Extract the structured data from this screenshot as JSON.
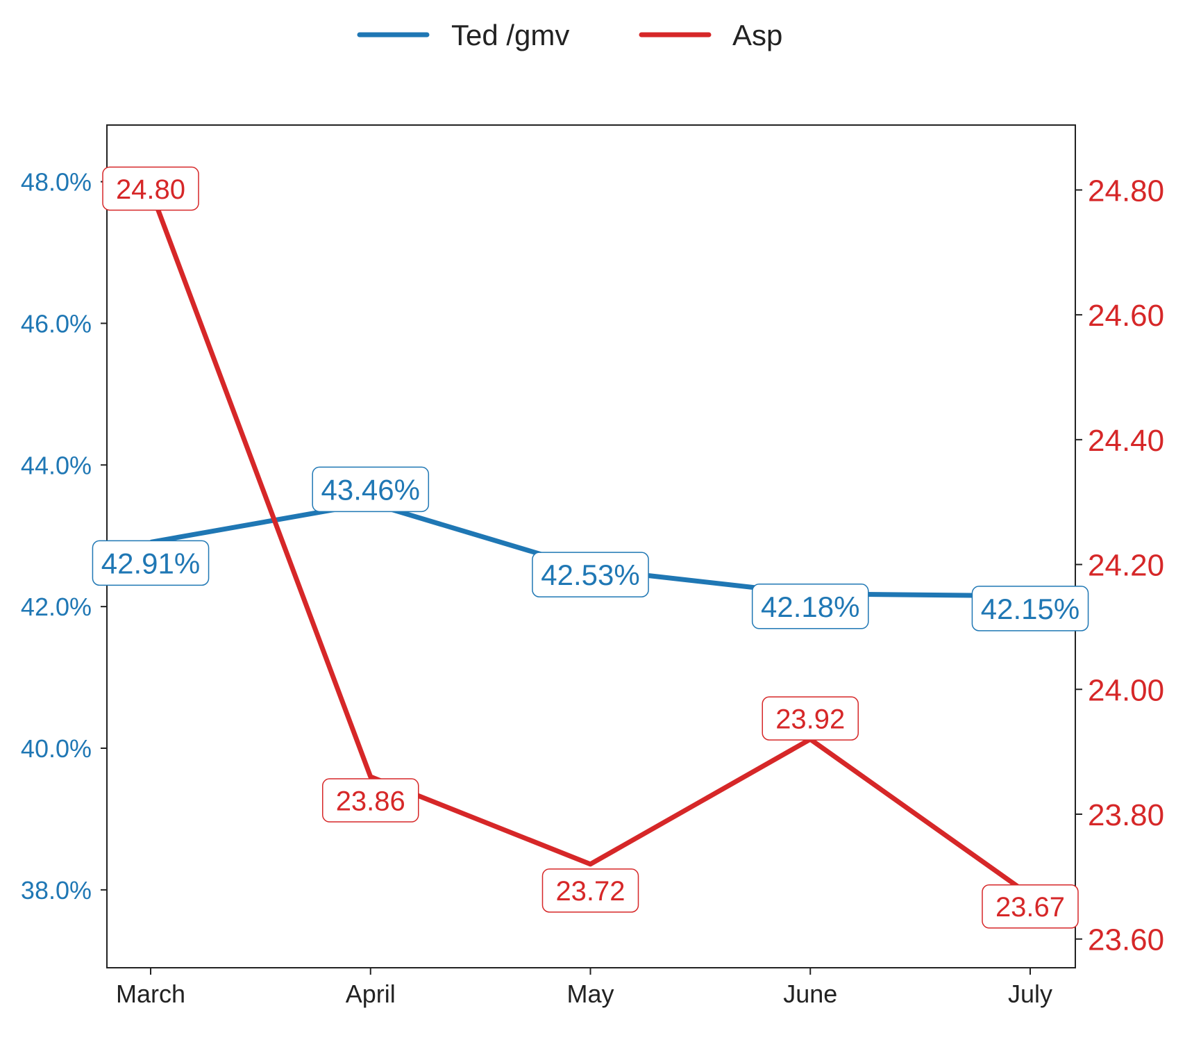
{
  "chart_data": {
    "type": "line",
    "categories": [
      "March",
      "April",
      "May",
      "June",
      "July"
    ],
    "legend": {
      "placement": "top-center"
    },
    "grid": false,
    "series": [
      {
        "name": "Ted /gmv",
        "axis": "left",
        "color": "#1f77b4",
        "values": [
          42.91,
          43.46,
          42.53,
          42.18,
          42.15
        ],
        "labels": [
          "42.91%",
          "43.46%",
          "42.53%",
          "42.18%",
          "42.15%"
        ]
      },
      {
        "name": "Asp",
        "axis": "right",
        "color": "#d62728",
        "values": [
          24.8,
          23.86,
          23.72,
          23.92,
          23.67
        ],
        "labels": [
          "24.80",
          "23.86",
          "23.72",
          "23.92",
          "23.67"
        ]
      }
    ],
    "y_left": {
      "ylim": [
        36.9,
        48.8
      ],
      "ticks": [
        38,
        40,
        42,
        44,
        46,
        48
      ],
      "tick_labels": [
        "38.0%",
        "40.0%",
        "42.0%",
        "44.0%",
        "46.0%",
        "48.0%"
      ],
      "color": "#1f77b4"
    },
    "y_right": {
      "ylim": [
        23.554,
        24.904
      ],
      "ticks": [
        23.6,
        23.8,
        24.0,
        24.2,
        24.4,
        24.6,
        24.8
      ],
      "tick_labels": [
        "23.60",
        "23.80",
        "24.00",
        "24.20",
        "24.40",
        "24.60",
        "24.80"
      ],
      "color": "#d62728"
    }
  }
}
